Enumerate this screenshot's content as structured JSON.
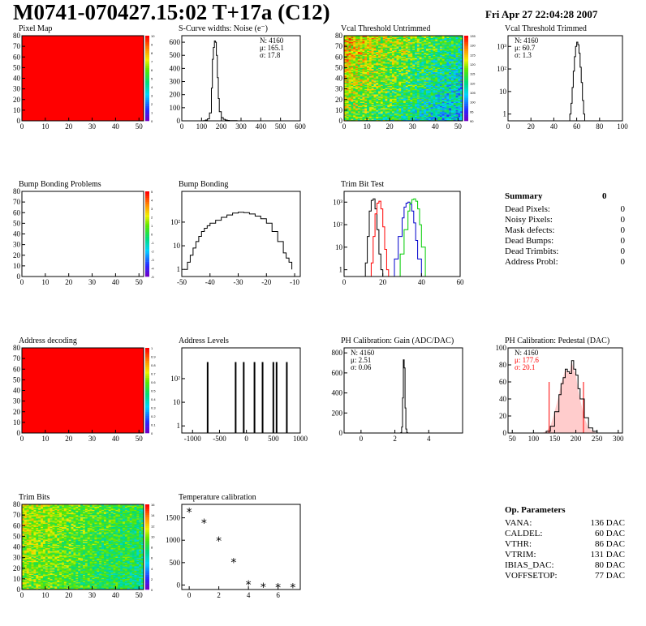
{
  "header": {
    "title": "M0741-070427.15:02 T+17a (C12)",
    "date": "Fri Apr 27 22:04:28 2007"
  },
  "colors": {
    "map_red": "#ff0000",
    "line_black": "#000000",
    "red": "#ff0000",
    "blue": "#0000cc",
    "green": "#00cc00"
  },
  "summary": {
    "title": "Summary",
    "value": "0",
    "rows": [
      {
        "label": "Dead Pixels:",
        "value": "0"
      },
      {
        "label": "Noisy Pixels:",
        "value": "0"
      },
      {
        "label": "Mask defects:",
        "value": "0"
      },
      {
        "label": "Dead Bumps:",
        "value": "0"
      },
      {
        "label": "Dead Trimbits:",
        "value": "0"
      },
      {
        "label": "Address Probl:",
        "value": "0"
      }
    ]
  },
  "op_params": {
    "title": "Op. Parameters",
    "rows": [
      {
        "label": "VANA:",
        "value": "136 DAC"
      },
      {
        "label": "CALDEL:",
        "value": "60 DAC"
      },
      {
        "label": "VTHR:",
        "value": "86 DAC"
      },
      {
        "label": "VTRIM:",
        "value": "131 DAC"
      },
      {
        "label": "IBIAS_DAC:",
        "value": "80 DAC"
      },
      {
        "label": "VOFFSETOP:",
        "value": "77 DAC"
      }
    ]
  },
  "chart_data": [
    {
      "id": "pixel-map",
      "type": "heatmap",
      "title": "Pixel Map",
      "xlim": [
        0,
        52
      ],
      "ylim": [
        0,
        80
      ],
      "xticks": [
        0,
        10,
        20,
        30,
        40,
        50
      ],
      "yticks": [
        0,
        10,
        20,
        30,
        40,
        50,
        60,
        70,
        80
      ],
      "fill": "uniform-max",
      "zrange": [
        0,
        10
      ],
      "zticks": [
        "0",
        "1",
        "2",
        "3",
        "4",
        "5",
        "6",
        "7",
        "8",
        "9",
        "10"
      ]
    },
    {
      "id": "scurve-noise",
      "type": "histogram",
      "title": "S-Curve widths: Noise (e⁻)",
      "xlim": [
        0,
        600
      ],
      "ylim": [
        0,
        650
      ],
      "xticks": [
        0,
        100,
        200,
        300,
        400,
        500,
        600
      ],
      "yticks": [
        0,
        100,
        200,
        300,
        400,
        500,
        600
      ],
      "stats": [
        "N: 4160",
        "μ: 165.1",
        "σ: 17.8"
      ],
      "series": [
        {
          "color": "#000000",
          "x": [
            100,
            110,
            120,
            130,
            140,
            150,
            155,
            160,
            165,
            170,
            175,
            180,
            185,
            190,
            200,
            210,
            220,
            230,
            240,
            260,
            280,
            300
          ],
          "y": [
            0,
            2,
            6,
            15,
            60,
            250,
            470,
            560,
            610,
            600,
            500,
            330,
            170,
            70,
            25,
            12,
            6,
            3,
            2,
            1,
            0,
            0
          ]
        }
      ]
    },
    {
      "id": "vcal-untrimmed",
      "type": "heatmap",
      "title": "Vcal Threshold Untrimmed",
      "xlim": [
        0,
        52
      ],
      "ylim": [
        0,
        80
      ],
      "xticks": [
        0,
        10,
        20,
        30,
        40,
        50
      ],
      "yticks": [
        0,
        10,
        20,
        30,
        40,
        50,
        60,
        70,
        80
      ],
      "fill": "noise-gradient",
      "zrange": [
        90,
        135
      ],
      "zticks": [
        "90",
        "95",
        "100",
        "105",
        "110",
        "115",
        "120",
        "125",
        "130",
        "135"
      ]
    },
    {
      "id": "vcal-trimmed",
      "type": "histogram",
      "title": "Vcal Threshold Trimmed",
      "logy": true,
      "xlim": [
        0,
        100
      ],
      "ylim": [
        0.5,
        3000
      ],
      "xticks": [
        0,
        20,
        40,
        60,
        80,
        100
      ],
      "yticks": [
        1,
        10,
        100,
        1000
      ],
      "stats": [
        "N: 4160",
        "μ: 60.7",
        "σ: 1.3"
      ],
      "series": [
        {
          "color": "#000000",
          "x": [
            53,
            54,
            55,
            56,
            57,
            58,
            59,
            60,
            61,
            62,
            63,
            64,
            65,
            66,
            67
          ],
          "y": [
            0,
            1,
            3,
            15,
            80,
            350,
            1000,
            1550,
            1200,
            500,
            120,
            25,
            4,
            1,
            0
          ]
        }
      ]
    },
    {
      "id": "bump-problems",
      "type": "heatmap",
      "title": "Bump Bonding Problems",
      "xlim": [
        0,
        52
      ],
      "ylim": [
        0,
        80
      ],
      "xticks": [
        0,
        10,
        20,
        30,
        40,
        50
      ],
      "yticks": [
        0,
        10,
        20,
        30,
        40,
        50,
        60,
        70,
        80
      ],
      "fill": "empty",
      "zrange": [
        -5,
        5
      ],
      "zticks": [
        "-5",
        "-4",
        "-3",
        "-2",
        "-1",
        "0",
        "1",
        "2",
        "3",
        "4",
        "5"
      ]
    },
    {
      "id": "bump-bonding",
      "type": "histogram",
      "title": "Bump Bonding",
      "logy": true,
      "xlim": [
        -50,
        -8
      ],
      "ylim": [
        0.5,
        2000
      ],
      "xticks": [
        -50,
        -40,
        -30,
        -20,
        -10
      ],
      "yticks": [
        1,
        10,
        100
      ],
      "series": [
        {
          "color": "#000000",
          "x": [
            -49,
            -48,
            -47,
            -46,
            -45,
            -44,
            -43,
            -42,
            -41,
            -40,
            -38,
            -36,
            -34,
            -32,
            -30,
            -28,
            -26,
            -24,
            -22,
            -20,
            -18,
            -16,
            -14,
            -13,
            -12,
            -11
          ],
          "y": [
            1,
            2,
            4,
            8,
            15,
            25,
            40,
            55,
            70,
            90,
            120,
            160,
            200,
            240,
            260,
            250,
            220,
            180,
            140,
            90,
            40,
            15,
            5,
            3,
            2,
            1
          ]
        }
      ]
    },
    {
      "id": "trim-bit-test",
      "type": "histogram",
      "title": "Trim Bit Test",
      "logy": true,
      "xlim": [
        0,
        60
      ],
      "ylim": [
        0.5,
        3000
      ],
      "xticks": [
        0,
        20,
        40,
        60
      ],
      "yticks": [
        1,
        10,
        100,
        1000
      ],
      "series": [
        {
          "color": "#000000",
          "x": [
            10,
            11,
            12,
            13,
            14,
            15,
            16,
            17,
            18,
            19,
            20
          ],
          "y": [
            0,
            2,
            30,
            400,
            1200,
            1400,
            500,
            60,
            5,
            1,
            0
          ]
        },
        {
          "color": "#ff0000",
          "x": [
            13,
            14,
            15,
            16,
            17,
            18,
            19,
            20,
            21,
            22,
            23
          ],
          "y": [
            0,
            2,
            30,
            300,
            900,
            1100,
            500,
            80,
            8,
            1,
            0
          ]
        },
        {
          "color": "#0000cc",
          "x": [
            24,
            26,
            28,
            30,
            31,
            32,
            33,
            34,
            35,
            36,
            37,
            38,
            40
          ],
          "y": [
            0,
            3,
            30,
            200,
            600,
            900,
            1000,
            800,
            400,
            120,
            20,
            3,
            0
          ]
        },
        {
          "color": "#00cc00",
          "x": [
            27,
            29,
            31,
            33,
            34,
            35,
            36,
            37,
            38,
            39,
            40,
            42
          ],
          "y": [
            0,
            5,
            60,
            400,
            900,
            1300,
            1400,
            1100,
            500,
            100,
            10,
            0
          ]
        }
      ]
    },
    {
      "id": "address-decoding",
      "type": "heatmap",
      "title": "Address decoding",
      "xlim": [
        0,
        52
      ],
      "ylim": [
        0,
        80
      ],
      "xticks": [
        0,
        10,
        20,
        30,
        40,
        50
      ],
      "yticks": [
        0,
        10,
        20,
        30,
        40,
        50,
        60,
        70,
        80
      ],
      "fill": "uniform-max",
      "zrange": [
        0,
        1
      ],
      "zticks": [
        "0",
        "0.1",
        "0.2",
        "0.3",
        "0.4",
        "0.5",
        "0.6",
        "0.7",
        "0.8",
        "0.9",
        "1"
      ]
    },
    {
      "id": "address-levels",
      "type": "spikes",
      "title": "Address Levels",
      "logy": true,
      "xlim": [
        -1200,
        1000
      ],
      "ylim": [
        0.5,
        2000
      ],
      "xticks": [
        -1000,
        -500,
        0,
        500,
        1000
      ],
      "yticks": [
        1,
        10,
        100
      ],
      "spikes": [
        -720,
        -200,
        -50,
        150,
        300,
        500,
        560,
        750
      ],
      "spike_height": 500
    },
    {
      "id": "ph-gain",
      "type": "histogram",
      "title": "PH Calibration: Gain (ADC/DAC)",
      "xlim": [
        -1,
        6
      ],
      "ylim": [
        0,
        850
      ],
      "xticks": [
        0,
        2,
        4
      ],
      "yticks": [
        0,
        200,
        400,
        600,
        800
      ],
      "stats": [
        "N: 4160",
        "μ: 2.51",
        "σ: 0.06"
      ],
      "series": [
        {
          "color": "#000000",
          "x": [
            2.3,
            2.35,
            2.4,
            2.45,
            2.5,
            2.55,
            2.6,
            2.65,
            2.7,
            2.75
          ],
          "y": [
            0,
            5,
            60,
            350,
            730,
            650,
            250,
            40,
            5,
            0
          ]
        }
      ]
    },
    {
      "id": "ph-pedestal",
      "type": "histogram",
      "title": "PH Calibration: Pedestal (DAC)",
      "xlim": [
        40,
        310
      ],
      "ylim": [
        0,
        100
      ],
      "xticks": [
        50,
        100,
        150,
        200,
        250,
        300
      ],
      "yticks": [
        0,
        20,
        40,
        60,
        80,
        100
      ],
      "stats": [
        "N: 4160",
        "μ: 177.6",
        "σ: 20.1"
      ],
      "cut_lines": [
        137,
        218
      ],
      "series": [
        {
          "color": "#000000",
          "x": [
            120,
            130,
            140,
            150,
            160,
            165,
            170,
            175,
            180,
            185,
            190,
            195,
            200,
            205,
            210,
            220,
            230,
            240,
            250
          ],
          "y": [
            0,
            2,
            8,
            25,
            45,
            58,
            65,
            75,
            72,
            70,
            85,
            75,
            68,
            52,
            40,
            18,
            6,
            2,
            0
          ]
        }
      ]
    },
    {
      "id": "trim-bits",
      "type": "heatmap",
      "title": "Trim Bits",
      "xlim": [
        0,
        52
      ],
      "ylim": [
        0,
        80
      ],
      "xticks": [
        0,
        10,
        20,
        30,
        40,
        50
      ],
      "yticks": [
        0,
        10,
        20,
        30,
        40,
        50,
        60,
        70,
        80
      ],
      "fill": "trim-gradient",
      "zrange": [
        0,
        16
      ],
      "zticks": [
        "0",
        "2",
        "4",
        "6",
        "8",
        "10",
        "12",
        "14",
        "16"
      ]
    },
    {
      "id": "temperature-calibration",
      "type": "scatter",
      "title": "Temperature calibration",
      "xlim": [
        -0.5,
        7.5
      ],
      "ylim": [
        -100,
        1800
      ],
      "xticks": [
        0,
        2,
        4,
        6
      ],
      "yticks": [
        0,
        500,
        1000,
        1500
      ],
      "x": [
        0,
        1,
        2,
        3,
        4,
        5,
        6,
        7
      ],
      "y": [
        1650,
        1400,
        1000,
        520,
        30,
        -30,
        -40,
        -40
      ]
    }
  ]
}
